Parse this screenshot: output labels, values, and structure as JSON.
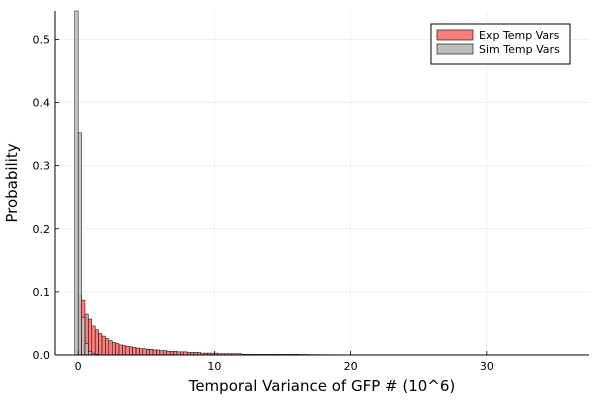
{
  "chart_data": {
    "type": "bar",
    "title": "",
    "xlabel": "Temporal Variance of GFP # (10^6)",
    "ylabel": "Probability",
    "xlim": [
      -1.7,
      37.5
    ],
    "ylim": [
      0,
      0.545
    ],
    "x_ticks": [
      0,
      10,
      20,
      30
    ],
    "y_ticks": [
      0.0,
      0.1,
      0.2,
      0.3,
      0.4,
      0.5
    ],
    "y_tick_labels": [
      "0.0",
      "0.1",
      "0.2",
      "0.3",
      "0.4",
      "0.5"
    ],
    "grid": true,
    "legend_position": "top-right",
    "bin_width": 0.25,
    "series": [
      {
        "name": "Exp Temp Vars",
        "color": "#fa7f7c",
        "bins_start": 0,
        "values": [
          0.095,
          0.087,
          0.065,
          0.057,
          0.046,
          0.04,
          0.034,
          0.03,
          0.026,
          0.023,
          0.02,
          0.018,
          0.016,
          0.015,
          0.014,
          0.013,
          0.012,
          0.011,
          0.01,
          0.01,
          0.009,
          0.009,
          0.008,
          0.008,
          0.007,
          0.007,
          0.006,
          0.006,
          0.006,
          0.005,
          0.005,
          0.005,
          0.004,
          0.004,
          0.004,
          0.004,
          0.003,
          0.003,
          0.003,
          0.003,
          0.003,
          0.002,
          0.002,
          0.002,
          0.002,
          0.002,
          0.002,
          0.002,
          0.001,
          0.001,
          0.001,
          0.001,
          0.001,
          0.001,
          0.001,
          0.001,
          0.001,
          0.001,
          0.001,
          0.001,
          0.001,
          0.001,
          0.001,
          0.001,
          0.001,
          0.0008,
          0.0008,
          0.0008,
          0.0006,
          0.0006,
          0.0006,
          0.0005,
          0.0005,
          0.0005,
          0.0005,
          0.0004,
          0.0004,
          0.0004,
          0.0004,
          0.0003
        ]
      },
      {
        "name": "Sim Temp Vars",
        "color": "#bdbdbd",
        "bins_start": -0.25,
        "values": [
          0.545,
          0.352,
          0.06,
          0.018,
          0.006,
          0.002,
          0.001
        ]
      }
    ]
  }
}
